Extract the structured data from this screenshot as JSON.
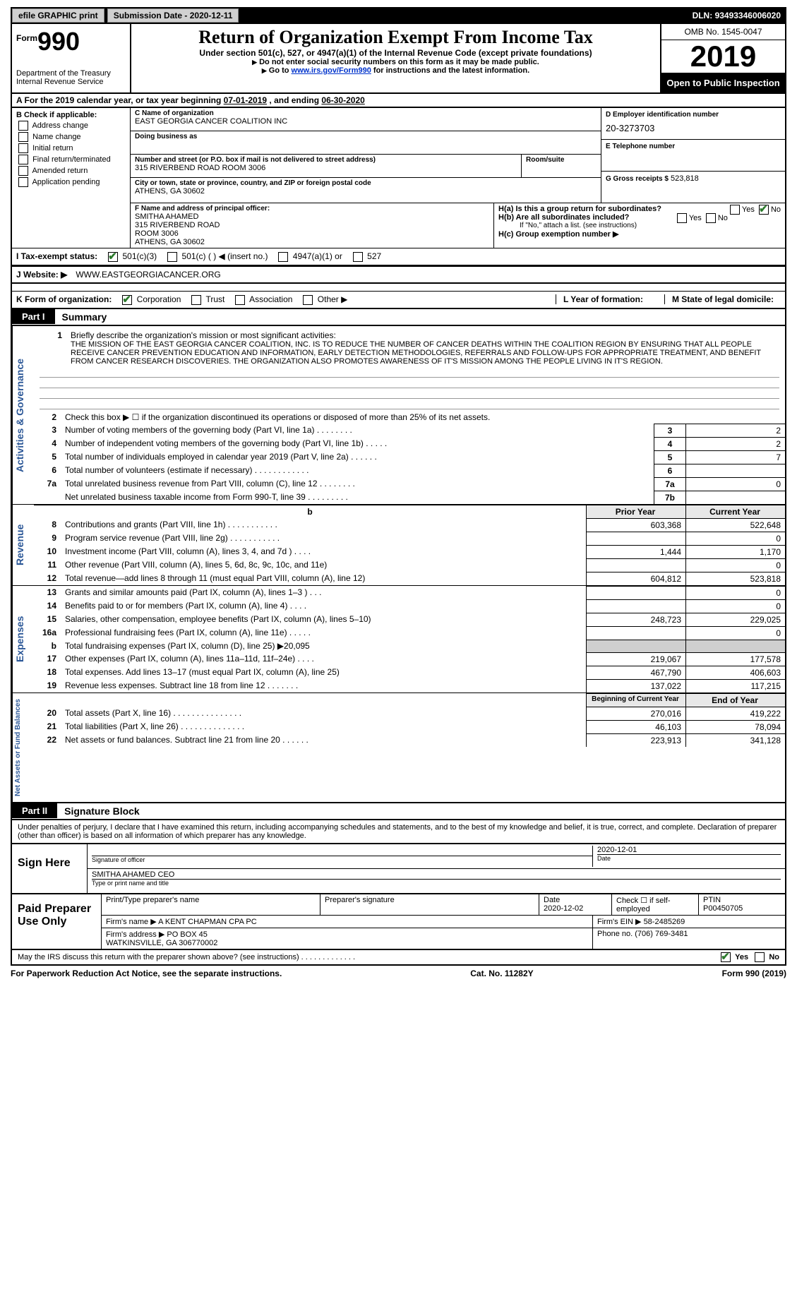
{
  "topbar": {
    "efile": "efile GRAPHIC print",
    "submission_label": "Submission Date - ",
    "submission_date": "2020-12-11",
    "dln_label": "DLN: ",
    "dln": "93493346006020"
  },
  "header": {
    "form_small": "Form",
    "form_num": "990",
    "dept": "Department of the Treasury\nInternal Revenue Service",
    "title": "Return of Organization Exempt From Income Tax",
    "sub1": "Under section 501(c), 527, or 4947(a)(1) of the Internal Revenue Code (except private foundations)",
    "sub2": "Do not enter social security numbers on this form as it may be made public.",
    "sub3_pre": "Go to ",
    "sub3_link": "www.irs.gov/Form990",
    "sub3_post": " for instructions and the latest information.",
    "omb": "OMB No. 1545-0047",
    "year": "2019",
    "inspection": "Open to Public Inspection"
  },
  "rowA": {
    "text_pre": "A  For the 2019 calendar year, or tax year beginning ",
    "begin": "07-01-2019",
    "text_mid": "  , and ending ",
    "end": "06-30-2020"
  },
  "boxB": {
    "title": "B Check if applicable:",
    "items": [
      "Address change",
      "Name change",
      "Initial return",
      "Final return/terminated",
      "Amended return",
      "Application pending"
    ]
  },
  "boxC": {
    "name_lbl": "C Name of organization",
    "name": "EAST GEORGIA CANCER COALITION INC",
    "dba_lbl": "Doing business as",
    "dba": "",
    "street_lbl": "Number and street (or P.O. box if mail is not delivered to street address)",
    "street": "315 RIVERBEND ROAD ROOM 3006",
    "room_lbl": "Room/suite",
    "city_lbl": "City or town, state or province, country, and ZIP or foreign postal code",
    "city": "ATHENS, GA  30602"
  },
  "boxD": {
    "lbl": "D Employer identification number",
    "val": "20-3273703"
  },
  "boxE": {
    "lbl": "E Telephone number",
    "val": ""
  },
  "boxG": {
    "lbl": "G Gross receipts $",
    "val": "523,818"
  },
  "boxF": {
    "lbl": "F Name and address of principal officer:",
    "name": "SMITHA AHAMED",
    "addr1": "315 RIVERBEND ROAD",
    "addr2": "ROOM 3006",
    "addr3": "ATHENS, GA  30602"
  },
  "boxH": {
    "ha": "H(a)  Is this a group return for subordinates?",
    "hb": "H(b)  Are all subordinates included?",
    "hb_note": "If \"No,\" attach a list. (see instructions)",
    "hc": "H(c)  Group exemption number ▶",
    "yes": "Yes",
    "no": "No"
  },
  "rowI": {
    "lbl": "I   Tax-exempt status:",
    "opt1": "501(c)(3)",
    "opt2": "501(c) (   ) ◀ (insert no.)",
    "opt3": "4947(a)(1) or",
    "opt4": "527"
  },
  "rowJ": {
    "lbl": "J   Website: ▶",
    "val": "WWW.EASTGEORGIACANCER.ORG"
  },
  "rowK": {
    "lbl": "K Form of organization:",
    "opts": [
      "Corporation",
      "Trust",
      "Association",
      "Other ▶"
    ],
    "L_lbl": "L Year of formation:",
    "M_lbl": "M State of legal domicile:"
  },
  "part1": {
    "hdr": "Part I",
    "title": "Summary",
    "line1_lbl": "Briefly describe the organization's mission or most significant activities:",
    "mission": "THE MISSION OF THE EAST GEORGIA CANCER COALITION, INC. IS TO REDUCE THE NUMBER OF CANCER DEATHS WITHIN THE COALITION REGION BY ENSURING THAT ALL PEOPLE RECEIVE CANCER PREVENTION EDUCATION AND INFORMATION, EARLY DETECTION METHODOLOGIES, REFERRALS AND FOLLOW-UPS FOR APPROPRIATE TREATMENT, AND BENEFIT FROM CANCER RESEARCH DISCOVERIES. THE ORGANIZATION ALSO PROMOTES AWARENESS OF IT'S MISSION AMONG THE PEOPLE LIVING IN IT'S REGION.",
    "line2": "Check this box ▶ ☐ if the organization discontinued its operations or disposed of more than 25% of its net assets.",
    "rows": [
      {
        "n": "3",
        "d": "Number of voting members of the governing body (Part VI, line 1a)   .   .   .   .   .   .   .   .",
        "b": "3",
        "v": "2"
      },
      {
        "n": "4",
        "d": "Number of independent voting members of the governing body (Part VI, line 1b)   .   .   .   .   .",
        "b": "4",
        "v": "2"
      },
      {
        "n": "5",
        "d": "Total number of individuals employed in calendar year 2019 (Part V, line 2a)   .   .   .   .   .   .",
        "b": "5",
        "v": "7"
      },
      {
        "n": "6",
        "d": "Total number of volunteers (estimate if necessary)   .   .   .   .   .   .   .   .   .   .   .   .",
        "b": "6",
        "v": ""
      },
      {
        "n": "7a",
        "d": "Total unrelated business revenue from Part VIII, column (C), line 12   .   .   .   .   .   .   .   .",
        "b": "7a",
        "v": "0"
      },
      {
        "n": "",
        "d": "Net unrelated business taxable income from Form 990-T, line 39   .   .   .   .   .   .   .   .   .",
        "b": "7b",
        "v": ""
      }
    ]
  },
  "revenue": {
    "hdr_prior": "Prior Year",
    "hdr_cur": "Current Year",
    "rows": [
      {
        "n": "8",
        "d": "Contributions and grants (Part VIII, line 1h)   .   .   .   .   .   .   .   .   .   .   .",
        "p": "603,368",
        "c": "522,648"
      },
      {
        "n": "9",
        "d": "Program service revenue (Part VIII, line 2g)   .   .   .   .   .   .   .   .   .   .   .",
        "p": "",
        "c": "0"
      },
      {
        "n": "10",
        "d": "Investment income (Part VIII, column (A), lines 3, 4, and 7d )   .   .   .   .",
        "p": "1,444",
        "c": "1,170"
      },
      {
        "n": "11",
        "d": "Other revenue (Part VIII, column (A), lines 5, 6d, 8c, 9c, 10c, and 11e)",
        "p": "",
        "c": "0"
      },
      {
        "n": "12",
        "d": "Total revenue—add lines 8 through 11 (must equal Part VIII, column (A), line 12)",
        "p": "604,812",
        "c": "523,818"
      }
    ]
  },
  "expenses": {
    "rows": [
      {
        "n": "13",
        "d": "Grants and similar amounts paid (Part IX, column (A), lines 1–3 )   .   .   .",
        "p": "",
        "c": "0"
      },
      {
        "n": "14",
        "d": "Benefits paid to or for members (Part IX, column (A), line 4)   .   .   .   .",
        "p": "",
        "c": "0"
      },
      {
        "n": "15",
        "d": "Salaries, other compensation, employee benefits (Part IX, column (A), lines 5–10)",
        "p": "248,723",
        "c": "229,025"
      },
      {
        "n": "16a",
        "d": "Professional fundraising fees (Part IX, column (A), line 11e)   .   .   .   .   .",
        "p": "",
        "c": "0"
      },
      {
        "n": "b",
        "d": "Total fundraising expenses (Part IX, column (D), line 25) ▶20,095",
        "p": "shade",
        "c": "shade"
      },
      {
        "n": "17",
        "d": "Other expenses (Part IX, column (A), lines 11a–11d, 11f–24e)   .   .   .   .",
        "p": "219,067",
        "c": "177,578"
      },
      {
        "n": "18",
        "d": "Total expenses. Add lines 13–17 (must equal Part IX, column (A), line 25)",
        "p": "467,790",
        "c": "406,603"
      },
      {
        "n": "19",
        "d": "Revenue less expenses. Subtract line 18 from line 12   .   .   .   .   .   .   .",
        "p": "137,022",
        "c": "117,215"
      }
    ]
  },
  "netassets": {
    "hdr_beg": "Beginning of Current Year",
    "hdr_end": "End of Year",
    "rows": [
      {
        "n": "20",
        "d": "Total assets (Part X, line 16)   .   .   .   .   .   .   .   .   .   .   .   .   .   .   .",
        "p": "270,016",
        "c": "419,222"
      },
      {
        "n": "21",
        "d": "Total liabilities (Part X, line 26)   .   .   .   .   .   .   .   .   .   .   .   .   .   .",
        "p": "46,103",
        "c": "78,094"
      },
      {
        "n": "22",
        "d": "Net assets or fund balances. Subtract line 21 from line 20   .   .   .   .   .   .",
        "p": "223,913",
        "c": "341,128"
      }
    ]
  },
  "vtabs": {
    "act": "Activities & Governance",
    "rev": "Revenue",
    "exp": "Expenses",
    "net": "Net Assets or Fund Balances"
  },
  "part2": {
    "hdr": "Part II",
    "title": "Signature Block",
    "decl": "Under penalties of perjury, I declare that I have examined this return, including accompanying schedules and statements, and to the best of my knowledge and belief, it is true, correct, and complete. Declaration of preparer (other than officer) is based on all information of which preparer has any knowledge.",
    "sign_here": "Sign Here",
    "sig_officer_lbl": "Signature of officer",
    "sig_date_lbl": "Date",
    "sig_date": "2020-12-01",
    "typed_name": "SMITHA AHAMED  CEO",
    "typed_lbl": "Type or print name and title"
  },
  "preparer": {
    "title": "Paid Preparer Use Only",
    "h1": "Print/Type preparer's name",
    "h2": "Preparer's signature",
    "h3": "Date",
    "h3v": "2020-12-02",
    "h4": "Check ☐ if self-employed",
    "h5_lbl": "PTIN",
    "h5": "P00450705",
    "firm_name_lbl": "Firm's name    ▶",
    "firm_name": "A KENT CHAPMAN CPA PC",
    "firm_ein_lbl": "Firm's EIN ▶",
    "firm_ein": "58-2485269",
    "firm_addr_lbl": "Firm's address ▶",
    "firm_addr": "PO BOX 45\nWATKINSVILLE, GA  306770002",
    "phone_lbl": "Phone no.",
    "phone": "(706) 769-3481",
    "discuss": "May the IRS discuss this return with the preparer shown above? (see instructions)   .   .   .   .   .   .   .   .   .   .   .   .   .",
    "yes": "Yes",
    "no": "No"
  },
  "footer": {
    "left": "For Paperwork Reduction Act Notice, see the separate instructions.",
    "mid": "Cat. No. 11282Y",
    "right": "Form 990 (2019)"
  },
  "colors": {
    "vtab": "#2b5797"
  }
}
